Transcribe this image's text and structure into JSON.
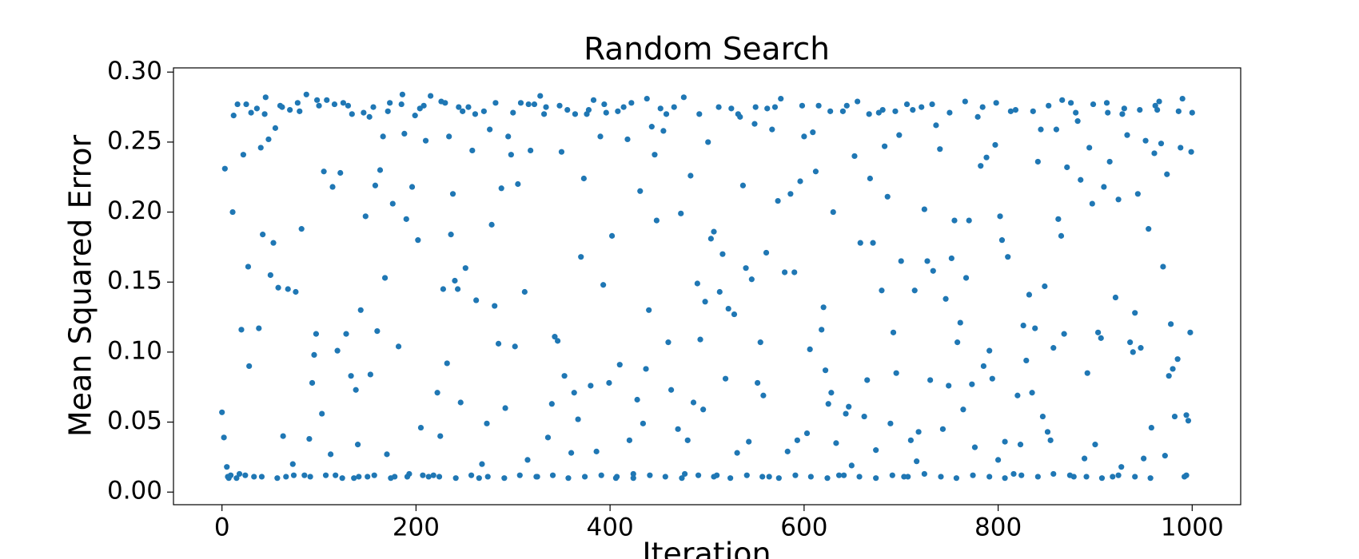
{
  "chart_data": {
    "type": "scatter",
    "title": "Random Search",
    "x_label": "Iteration",
    "y_label": "Mean Squared Error",
    "color": "#1f77b4",
    "xlim": [
      -50,
      1050
    ],
    "ylim": [
      -0.009,
      0.303
    ],
    "xticks": [
      0,
      200,
      400,
      600,
      800,
      1000
    ],
    "yticks": [
      {
        "value": 0,
        "label": "0.00"
      },
      {
        "value": 0.05,
        "label": "0.05"
      },
      {
        "value": 0.1,
        "label": "0.10"
      },
      {
        "value": 0.15,
        "label": "0.15"
      },
      {
        "value": 0.2,
        "label": "0.20"
      },
      {
        "value": 0.25,
        "label": "0.25"
      },
      {
        "value": 0.3,
        "label": "0.30"
      }
    ],
    "x": [
      0,
      2,
      3,
      5,
      6,
      9,
      11,
      12,
      15,
      18,
      20,
      22,
      25,
      27,
      28,
      30,
      33,
      36,
      38,
      40,
      42,
      45,
      48,
      50,
      53,
      55,
      58,
      60,
      63,
      66,
      68,
      70,
      73,
      76,
      78,
      82,
      85,
      87,
      90,
      93,
      95,
      97,
      100,
      103,
      105,
      108,
      112,
      114,
      117,
      119,
      122,
      125,
      128,
      130,
      133,
      136,
      138,
      140,
      143,
      146,
      148,
      150,
      153,
      156,
      158,
      160,
      163,
      166,
      168,
      170,
      173,
      176,
      178,
      182,
      185,
      188,
      190,
      193,
      196,
      199,
      202,
      205,
      208,
      210,
      213,
      215,
      218,
      222,
      225,
      228,
      230,
      232,
      234,
      236,
      238,
      240,
      243,
      246,
      248,
      251,
      254,
      258,
      262,
      265,
      268,
      270,
      273,
      276,
      278,
      281,
      285,
      288,
      292,
      295,
      298,
      302,
      305,
      308,
      312,
      315,
      318,
      322,
      325,
      328,
      332,
      336,
      340,
      343,
      346,
      350,
      353,
      356,
      360,
      363,
      367,
      370,
      373,
      376,
      380,
      383,
      386,
      390,
      393,
      396,
      399,
      402,
      406,
      410,
      414,
      418,
      420,
      424,
      428,
      431,
      434,
      437,
      440,
      443,
      446,
      448,
      452,
      455,
      460,
      463,
      466,
      470,
      473,
      477,
      480,
      483,
      486,
      490,
      493,
      496,
      498,
      501,
      504,
      507,
      510,
      513,
      516,
      519,
      522,
      525,
      528,
      531,
      534,
      537,
      540,
      543,
      546,
      549,
      552,
      555,
      558,
      561,
      564,
      567,
      570,
      573,
      576,
      580,
      583,
      586,
      590,
      593,
      596,
      600,
      603,
      606,
      609,
      612,
      615,
      618,
      620,
      622,
      625,
      628,
      630,
      633,
      636,
      640,
      643,
      646,
      649,
      652,
      655,
      658,
      662,
      665,
      668,
      671,
      674,
      677,
      680,
      683,
      686,
      689,
      692,
      695,
      698,
      700,
      703,
      706,
      710,
      714,
      716,
      718,
      721,
      724,
      727,
      730,
      733,
      736,
      740,
      743,
      746,
      749,
      752,
      755,
      758,
      761,
      764,
      767,
      770,
      773,
      776,
      779,
      782,
      785,
      788,
      791,
      794,
      797,
      800,
      802,
      804,
      807,
      810,
      813,
      816,
      820,
      823,
      826,
      829,
      832,
      835,
      838,
      841,
      844,
      846,
      848,
      851,
      854,
      857,
      860,
      862,
      865,
      868,
      871,
      875,
      878,
      882,
      885,
      889,
      892,
      894,
      897,
      900,
      903,
      906,
      909,
      912,
      915,
      918,
      921,
      924,
      927,
      930,
      933,
      936,
      939,
      941,
      944,
      947,
      950,
      952,
      955,
      958,
      961,
      964,
      966,
      968,
      970,
      972,
      974,
      976,
      978,
      980,
      982,
      985,
      988,
      990,
      992,
      994,
      996,
      998,
      999,
      7,
      24,
      41,
      57,
      74,
      91,
      107,
      124,
      141,
      157,
      174,
      191,
      207,
      224,
      241,
      257,
      274,
      291,
      307,
      324,
      341,
      357,
      374,
      391,
      407,
      424,
      441,
      457,
      474,
      491,
      507,
      524,
      541,
      557,
      574,
      591,
      607,
      624,
      641,
      657,
      674,
      691,
      707,
      724,
      741,
      757,
      774,
      791,
      807,
      824,
      841,
      857,
      874,
      891,
      907,
      924,
      941,
      957,
      994,
      16,
      44,
      62,
      80,
      98,
      116,
      134,
      152,
      171,
      186,
      204,
      226,
      244,
      261,
      282,
      300,
      316,
      334,
      348,
      364,
      378,
      394,
      408,
      422,
      438,
      458,
      476,
      492,
      512,
      532,
      550,
      562,
      598,
      627,
      644,
      667,
      681,
      694,
      712,
      732,
      750,
      766,
      784,
      798,
      818,
      836,
      852,
      866,
      880,
      898,
      913,
      928,
      946,
      962,
      986,
      1000
    ],
    "values": [
      0.057,
      0.039,
      0.231,
      0.018,
      0.011,
      0.012,
      0.2,
      0.269,
      0.01,
      0.013,
      0.116,
      0.241,
      0.277,
      0.161,
      0.09,
      0.271,
      0.011,
      0.274,
      0.117,
      0.246,
      0.184,
      0.282,
      0.252,
      0.155,
      0.178,
      0.26,
      0.146,
      0.276,
      0.04,
      0.011,
      0.145,
      0.273,
      0.02,
      0.143,
      0.278,
      0.188,
      0.012,
      0.284,
      0.038,
      0.078,
      0.098,
      0.113,
      0.276,
      0.056,
      0.229,
      0.28,
      0.027,
      0.218,
      0.012,
      0.101,
      0.228,
      0.278,
      0.113,
      0.276,
      0.083,
      0.01,
      0.073,
      0.034,
      0.13,
      0.271,
      0.197,
      0.011,
      0.084,
      0.275,
      0.219,
      0.115,
      0.23,
      0.254,
      0.153,
      0.027,
      0.278,
      0.206,
      0.011,
      0.104,
      0.277,
      0.256,
      0.195,
      0.013,
      0.218,
      0.269,
      0.18,
      0.046,
      0.276,
      0.251,
      0.011,
      0.283,
      0.012,
      0.071,
      0.04,
      0.145,
      0.278,
      0.092,
      0.254,
      0.184,
      0.213,
      0.151,
      0.145,
      0.064,
      0.272,
      0.16,
      0.275,
      0.244,
      0.137,
      0.01,
      0.02,
      0.272,
      0.049,
      0.259,
      0.191,
      0.133,
      0.106,
      0.217,
      0.06,
      0.254,
      0.241,
      0.104,
      0.22,
      0.278,
      0.143,
      0.023,
      0.244,
      0.277,
      0.011,
      0.283,
      0.27,
      0.039,
      0.063,
      0.111,
      0.108,
      0.243,
      0.083,
      0.273,
      0.028,
      0.071,
      0.052,
      0.168,
      0.224,
      0.27,
      0.076,
      0.28,
      0.029,
      0.254,
      0.148,
      0.271,
      0.078,
      0.183,
      0.01,
      0.091,
      0.275,
      0.252,
      0.037,
      0.013,
      0.066,
      0.215,
      0.049,
      0.088,
      0.13,
      0.261,
      0.241,
      0.194,
      0.274,
      0.258,
      0.107,
      0.073,
      0.275,
      0.045,
      0.199,
      0.013,
      0.037,
      0.226,
      0.064,
      0.149,
      0.109,
      0.059,
      0.136,
      0.25,
      0.181,
      0.186,
      0.012,
      0.143,
      0.17,
      0.081,
      0.131,
      0.274,
      0.127,
      0.028,
      0.268,
      0.219,
      0.16,
      0.036,
      0.152,
      0.263,
      0.078,
      0.107,
      0.069,
      0.171,
      0.011,
      0.259,
      0.275,
      0.208,
      0.281,
      0.157,
      0.029,
      0.213,
      0.157,
      0.037,
      0.222,
      0.254,
      0.042,
      0.102,
      0.257,
      0.229,
      0.276,
      0.116,
      0.132,
      0.087,
      0.063,
      0.071,
      0.2,
      0.035,
      0.012,
      0.272,
      0.056,
      0.061,
      0.019,
      0.24,
      0.279,
      0.178,
      0.054,
      0.08,
      0.224,
      0.178,
      0.03,
      0.271,
      0.144,
      0.247,
      0.211,
      0.049,
      0.114,
      0.085,
      0.255,
      0.165,
      0.011,
      0.277,
      0.037,
      0.144,
      0.022,
      0.043,
      0.275,
      0.202,
      0.165,
      0.08,
      0.158,
      0.262,
      0.245,
      0.045,
      0.138,
      0.076,
      0.167,
      0.194,
      0.107,
      0.121,
      0.059,
      0.153,
      0.194,
      0.077,
      0.032,
      0.268,
      0.233,
      0.09,
      0.239,
      0.101,
      0.081,
      0.248,
      0.023,
      0.197,
      0.18,
      0.036,
      0.168,
      0.272,
      0.013,
      0.069,
      0.034,
      0.119,
      0.094,
      0.141,
      0.071,
      0.117,
      0.236,
      0.259,
      0.054,
      0.147,
      0.043,
      0.037,
      0.103,
      0.259,
      0.195,
      0.183,
      0.113,
      0.232,
      0.278,
      0.011,
      0.265,
      0.223,
      0.024,
      0.085,
      0.246,
      0.206,
      0.034,
      0.114,
      0.11,
      0.218,
      0.278,
      0.236,
      0.011,
      0.139,
      0.209,
      0.018,
      0.274,
      0.255,
      0.107,
      0.1,
      0.128,
      0.213,
      0.103,
      0.024,
      0.251,
      0.188,
      0.046,
      0.242,
      0.273,
      0.279,
      0.249,
      0.161,
      0.026,
      0.227,
      0.083,
      0.12,
      0.088,
      0.054,
      0.095,
      0.246,
      0.281,
      0.011,
      0.055,
      0.051,
      0.114,
      0.243,
      0.01,
      0.012,
      0.011,
      0.01,
      0.012,
      0.011,
      0.012,
      0.01,
      0.011,
      0.012,
      0.01,
      0.011,
      0.012,
      0.011,
      0.01,
      0.012,
      0.011,
      0.01,
      0.012,
      0.011,
      0.012,
      0.01,
      0.011,
      0.012,
      0.011,
      0.01,
      0.012,
      0.011,
      0.01,
      0.012,
      0.011,
      0.01,
      0.012,
      0.011,
      0.01,
      0.012,
      0.011,
      0.01,
      0.012,
      0.011,
      0.01,
      0.012,
      0.011,
      0.013,
      0.011,
      0.01,
      0.012,
      0.011,
      0.01,
      0.012,
      0.011,
      0.013,
      0.012,
      0.011,
      0.01,
      0.012,
      0.011,
      0.01,
      0.012,
      0.277,
      0.27,
      0.275,
      0.272,
      0.28,
      0.277,
      0.27,
      0.268,
      0.272,
      0.284,
      0.274,
      0.279,
      0.275,
      0.27,
      0.278,
      0.271,
      0.277,
      0.275,
      0.276,
      0.27,
      0.273,
      0.277,
      0.272,
      0.278,
      0.281,
      0.27,
      0.282,
      0.27,
      0.275,
      0.27,
      0.275,
      0.274,
      0.276,
      0.272,
      0.276,
      0.27,
      0.273,
      0.272,
      0.273,
      0.277,
      0.271,
      0.279,
      0.275,
      0.278,
      0.273,
      0.272,
      0.276,
      0.28,
      0.271,
      0.277,
      0.271,
      0.27,
      0.273,
      0.276,
      0.272,
      0.271
    ]
  }
}
